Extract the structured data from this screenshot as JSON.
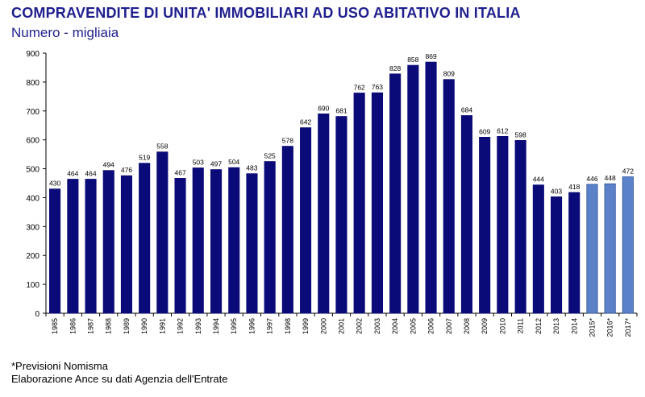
{
  "header": {
    "title": "COMPRAVENDITE DI UNITA' IMMOBILIARI AD USO ABITATIVO IN ITALIA",
    "subtitle": "Numero - migliaia"
  },
  "footnotes": {
    "forecast_note": "*Previsioni Nomisma",
    "source": "Elaborazione Ance su dati Agenzia dell'Entrate"
  },
  "colors": {
    "actual_bar": "#0a0a78",
    "forecast_bar": "#5b82c8",
    "title": "#1f1f8f"
  },
  "chart_data": {
    "type": "bar",
    "title": "COMPRAVENDITE DI UNITA' IMMOBILIARI AD USO ABITATIVO IN ITALIA",
    "subtitle": "Numero - migliaia",
    "xlabel": "",
    "ylabel": "",
    "ylim": [
      0,
      900
    ],
    "yticks": [
      0,
      100,
      200,
      300,
      400,
      500,
      600,
      700,
      800,
      900
    ],
    "grid": false,
    "categories": [
      "1985",
      "1986",
      "1987",
      "1988",
      "1989",
      "1990",
      "1991",
      "1992",
      "1993",
      "1994",
      "1995",
      "1996",
      "1997",
      "1998",
      "1999",
      "2000",
      "2001",
      "2002",
      "2003",
      "2004",
      "2005",
      "2006",
      "2007",
      "2008",
      "2009",
      "2010",
      "2011",
      "2012",
      "2013",
      "2014",
      "2015*",
      "2016*",
      "2017*"
    ],
    "values": [
      430,
      464,
      464,
      494,
      476,
      519,
      558,
      467,
      503,
      497,
      504,
      483,
      525,
      578,
      642,
      690,
      681,
      762,
      763,
      828,
      858,
      869,
      809,
      684,
      609,
      612,
      598,
      444,
      403,
      418,
      446,
      448,
      472
    ],
    "forecast": [
      false,
      false,
      false,
      false,
      false,
      false,
      false,
      false,
      false,
      false,
      false,
      false,
      false,
      false,
      false,
      false,
      false,
      false,
      false,
      false,
      false,
      false,
      false,
      false,
      false,
      false,
      false,
      false,
      false,
      false,
      true,
      true,
      true
    ]
  }
}
